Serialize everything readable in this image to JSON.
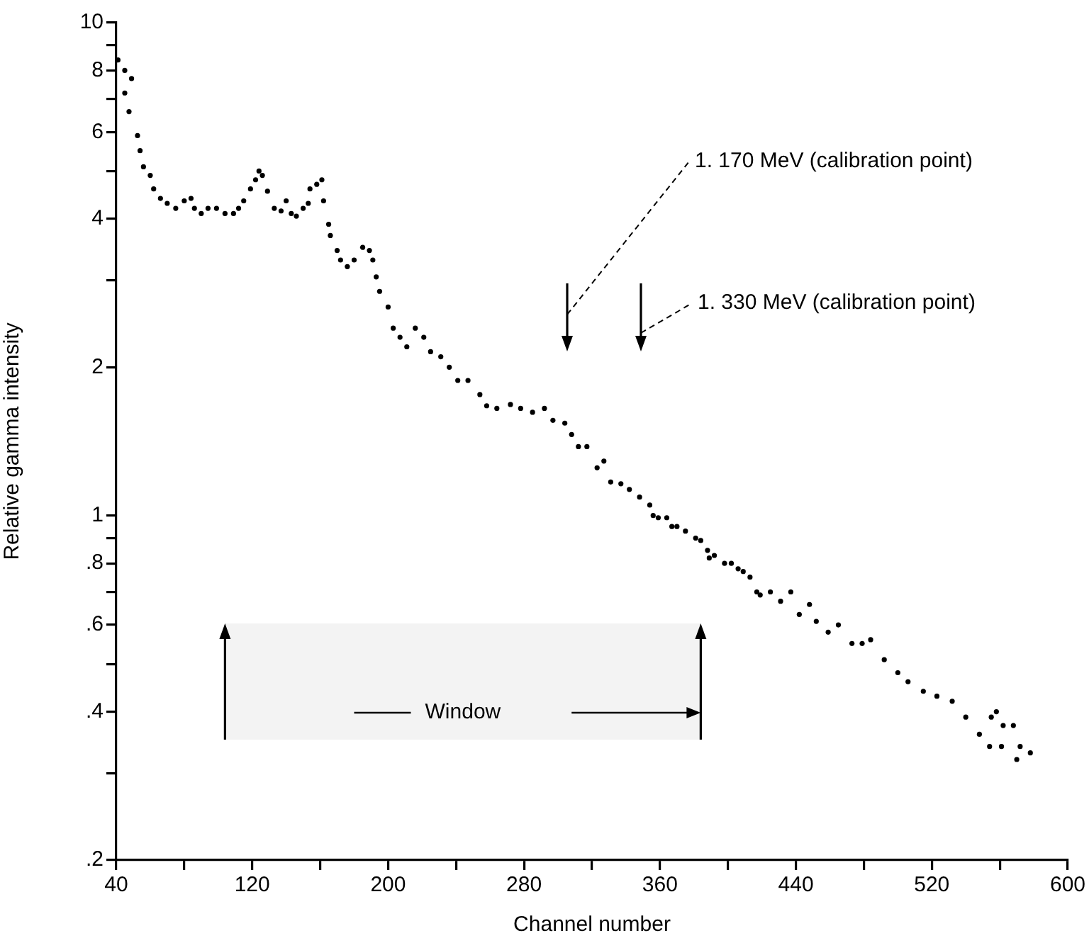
{
  "chart_data": {
    "type": "scatter",
    "xlabel": "Channel number",
    "ylabel": "Relative gamma intensity",
    "color": "#000000",
    "marker": "circle",
    "log": "y",
    "xlim": [
      40,
      600
    ],
    "ylim": [
      0.2,
      10
    ],
    "xticks": [
      40,
      {
        "value": 80,
        "label": null
      },
      120,
      {
        "value": 160,
        "label": null
      },
      200,
      {
        "value": 240,
        "label": null
      },
      280,
      {
        "value": 320,
        "label": null
      },
      360,
      {
        "value": 400,
        "label": null
      },
      440,
      {
        "value": 480,
        "label": null
      },
      520,
      {
        "value": 560,
        "label": null
      },
      600
    ],
    "yticks": [
      {
        "value": 0.2,
        "label": ".2"
      },
      {
        "value": 0.3,
        "label": null
      },
      {
        "value": 0.4,
        "label": ".4"
      },
      {
        "value": 0.5,
        "label": null
      },
      {
        "value": 0.6,
        "label": ".6"
      },
      {
        "value": 0.7,
        "label": null
      },
      {
        "value": 0.8,
        "label": ".8"
      },
      {
        "value": 0.9,
        "label": null
      },
      1,
      2,
      {
        "value": 3,
        "label": null
      },
      4,
      {
        "value": 5,
        "label": null
      },
      6,
      {
        "value": 7,
        "label": null
      },
      8,
      {
        "value": 9,
        "label": null
      },
      10
    ],
    "x": [
      41,
      45,
      45,
      47.5,
      49,
      52.5,
      54,
      56,
      60,
      62,
      66,
      70,
      75,
      80,
      84,
      86,
      90,
      94,
      99,
      104,
      109,
      112,
      115,
      119,
      122,
      124,
      126,
      129,
      133,
      137,
      140,
      143,
      146,
      150,
      153,
      154,
      158,
      161,
      162,
      165,
      166,
      170,
      172,
      176,
      180,
      185,
      189,
      191,
      193,
      195,
      200,
      203,
      207,
      211,
      216,
      221,
      225,
      231,
      236,
      241,
      247,
      254,
      258,
      264,
      272,
      278,
      285,
      292,
      297,
      304,
      308,
      312,
      317,
      323,
      327,
      331,
      337,
      342,
      348,
      354,
      356,
      359,
      364,
      367,
      370,
      375,
      381,
      384,
      388,
      389,
      392,
      398,
      402,
      406,
      409,
      413,
      417,
      419,
      425,
      431,
      437,
      442,
      448,
      452,
      459,
      465,
      473,
      479,
      484,
      492,
      500,
      506,
      515,
      523,
      532,
      540,
      548,
      554,
      555,
      558,
      561,
      562,
      568,
      570,
      572,
      578
    ],
    "values": [
      8.4,
      8.0,
      7.2,
      6.6,
      7.7,
      5.9,
      5.5,
      5.1,
      4.9,
      4.6,
      4.4,
      4.3,
      4.2,
      4.35,
      4.4,
      4.2,
      4.1,
      4.2,
      4.2,
      4.1,
      4.1,
      4.2,
      4.35,
      4.6,
      4.8,
      5.0,
      4.9,
      4.55,
      4.2,
      4.15,
      4.35,
      4.1,
      4.05,
      4.2,
      4.3,
      4.6,
      4.7,
      4.8,
      4.35,
      3.9,
      3.7,
      3.45,
      3.3,
      3.2,
      3.3,
      3.5,
      3.45,
      3.3,
      3.05,
      2.85,
      2.65,
      2.4,
      2.3,
      2.2,
      2.4,
      2.3,
      2.15,
      2.1,
      2.0,
      1.88,
      1.88,
      1.76,
      1.67,
      1.65,
      1.68,
      1.65,
      1.62,
      1.65,
      1.56,
      1.54,
      1.46,
      1.38,
      1.38,
      1.25,
      1.29,
      1.17,
      1.16,
      1.13,
      1.09,
      1.05,
      1.0,
      0.99,
      0.99,
      0.95,
      0.95,
      0.93,
      0.9,
      0.89,
      0.85,
      0.82,
      0.83,
      0.8,
      0.8,
      0.78,
      0.77,
      0.75,
      0.7,
      0.69,
      0.7,
      0.67,
      0.7,
      0.63,
      0.66,
      0.61,
      0.58,
      0.6,
      0.55,
      0.55,
      0.56,
      0.51,
      0.48,
      0.46,
      0.44,
      0.43,
      0.42,
      0.39,
      0.36,
      0.34,
      0.39,
      0.4,
      0.34,
      0.375,
      0.375,
      0.32,
      0.34,
      0.33
    ],
    "annotations": [
      "1. 170 MeV (calibration point)",
      "1. 330 MeV (calibration point)"
    ],
    "bands": [
      {
        "axis": "x",
        "from": 104,
        "to": 384,
        "label": "Window",
        "color": "#f3f3f3"
      }
    ]
  }
}
